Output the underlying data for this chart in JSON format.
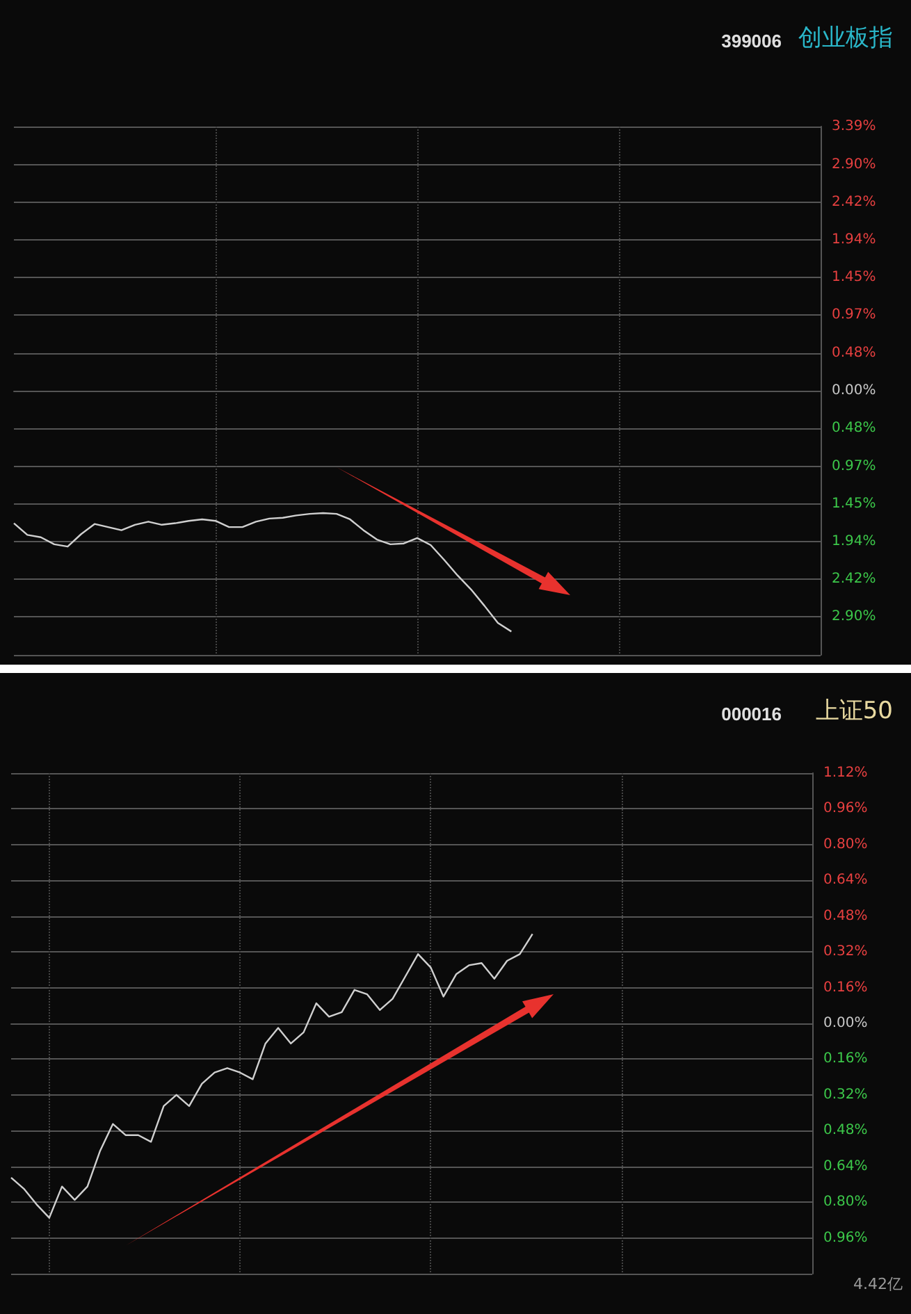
{
  "chart_data": [
    {
      "type": "line",
      "title": "创业板指",
      "subtitle": "399006",
      "categories": [
        null,
        null,
        null,
        null,
        null,
        null,
        null,
        null,
        null,
        null,
        null,
        null,
        null,
        null,
        null,
        null,
        null,
        null,
        null,
        null,
        null,
        null,
        null,
        null,
        null,
        null,
        null,
        null,
        null,
        null,
        null,
        null,
        null,
        null,
        null,
        null,
        null,
        null,
        null,
        null,
        null,
        null,
        null,
        null,
        null,
        null,
        null,
        null,
        null,
        null,
        null,
        null,
        null,
        null,
        null,
        null,
        null,
        null,
        null,
        null,
        null
      ],
      "ylim": [
        -3.39,
        3.39
      ],
      "yticks": [
        {
          "value": 3.39,
          "label": "3.39%"
        },
        {
          "value": 2.9,
          "label": "2.90%"
        },
        {
          "value": 2.42,
          "label": "2.42%"
        },
        {
          "value": 1.94,
          "label": "1.94%"
        },
        {
          "value": 1.45,
          "label": "1.45%"
        },
        {
          "value": 0.97,
          "label": "0.97%"
        },
        {
          "value": 0.48,
          "label": "0.48%"
        },
        {
          "value": 0,
          "label": "0.00%"
        },
        {
          "value": -0.48,
          "label": "0.48%"
        },
        {
          "value": -0.97,
          "label": "0.97%"
        },
        {
          "value": -1.45,
          "label": "1.45%"
        },
        {
          "value": -1.94,
          "label": "1.94%"
        },
        {
          "value": -2.42,
          "label": "2.42%"
        },
        {
          "value": -2.9,
          "label": "2.90%"
        },
        {
          "value": -3.39,
          "label": null
        }
      ],
      "tick_labels": "y",
      "grid": true,
      "marker": "none",
      "series": [
        {
          "color": "#d0d0d0",
          "values": [
            -1.7,
            -1.85,
            -1.88,
            -1.97,
            -2.0,
            -1.84,
            -1.71,
            -1.75,
            -1.79,
            -1.72,
            -1.68,
            -1.72,
            -1.7,
            -1.67,
            -1.65,
            -1.67,
            -1.75,
            -1.75,
            -1.68,
            -1.64,
            -1.63,
            -1.6,
            -1.58,
            -1.57,
            -1.58,
            -1.65,
            -1.79,
            -1.91,
            -1.97,
            -1.96,
            -1.89,
            -1.98,
            -2.17,
            -2.37,
            -2.55,
            -2.76,
            -2.98,
            -3.09,
            null,
            null,
            null,
            null,
            null,
            null,
            null,
            null,
            null,
            null,
            null,
            null,
            null,
            null,
            null,
            null,
            null,
            null,
            null,
            null,
            null,
            null,
            null
          ]
        }
      ]
    },
    {
      "type": "line",
      "title": "上证50",
      "subtitle": "000016",
      "categories": [
        null,
        null,
        null,
        null,
        null,
        null,
        null,
        null,
        null,
        null,
        null,
        null,
        null,
        null,
        null,
        null,
        null,
        null,
        null,
        null,
        null,
        null,
        null,
        null,
        null,
        null,
        null,
        null,
        null,
        null,
        null,
        null,
        null,
        null,
        null,
        null,
        null,
        null,
        null,
        null,
        null,
        null,
        null,
        null,
        null,
        null,
        null,
        null,
        null,
        null,
        null,
        null,
        null,
        null,
        null,
        null,
        null,
        null,
        null,
        null,
        null,
        null,
        null,
        null
      ],
      "ylim": [
        -1.12,
        1.12
      ],
      "yticks": [
        {
          "value": 1.12,
          "label": "1.12%"
        },
        {
          "value": 0.96,
          "label": "0.96%"
        },
        {
          "value": 0.8,
          "label": "0.80%"
        },
        {
          "value": 0.64,
          "label": "0.64%"
        },
        {
          "value": 0.48,
          "label": "0.48%"
        },
        {
          "value": 0.32,
          "label": "0.32%"
        },
        {
          "value": 0.16,
          "label": "0.16%"
        },
        {
          "value": 0,
          "label": "0.00%"
        },
        {
          "value": -0.16,
          "label": "0.16%"
        },
        {
          "value": -0.32,
          "label": "0.32%"
        },
        {
          "value": -0.48,
          "label": "0.48%"
        },
        {
          "value": -0.64,
          "label": "0.64%"
        },
        {
          "value": -0.8,
          "label": "0.80%"
        },
        {
          "value": -0.96,
          "label": "0.96%"
        },
        {
          "value": -1.12,
          "label": null
        }
      ],
      "tick_labels": "y",
      "grid": true,
      "marker": "none",
      "annotations": [
        "4.42亿"
      ],
      "series": [
        {
          "color": "#d0d0d0",
          "values": [
            -0.69,
            -0.74,
            -0.81,
            -0.87,
            -0.73,
            -0.79,
            -0.73,
            -0.57,
            -0.45,
            -0.5,
            -0.5,
            -0.53,
            -0.37,
            -0.32,
            -0.37,
            -0.27,
            -0.22,
            -0.2,
            -0.22,
            -0.25,
            -0.09,
            -0.02,
            -0.09,
            -0.04,
            0.09,
            0.03,
            0.05,
            0.15,
            0.13,
            0.06,
            0.11,
            0.21,
            0.31,
            0.25,
            0.12,
            0.22,
            0.26,
            0.27,
            0.2,
            0.28,
            0.31,
            0.4,
            null,
            null,
            null,
            null,
            null,
            null,
            null,
            null,
            null,
            null,
            null,
            null,
            null,
            null,
            null,
            null,
            null,
            null,
            null,
            null,
            null,
            null
          ]
        }
      ]
    }
  ]
}
